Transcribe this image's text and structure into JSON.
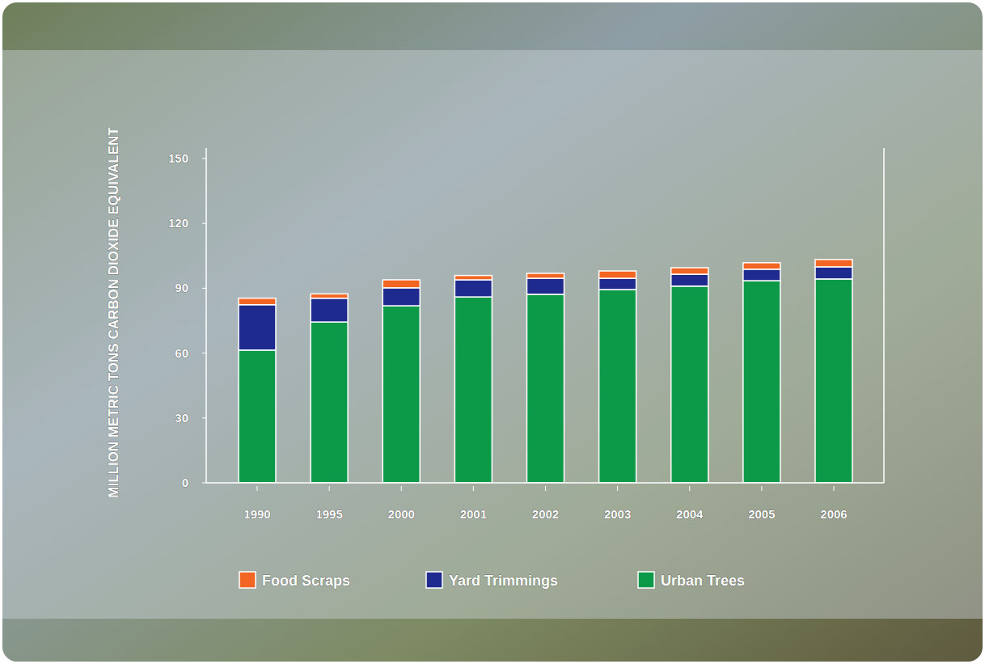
{
  "chart_data": {
    "type": "bar",
    "stacked": true,
    "y_label": "MILLION METRIC TONS CARBON DIOXIDE EQUIVALENT",
    "categories": [
      "1990",
      "1995",
      "2000",
      "2001",
      "2002",
      "2003",
      "2004",
      "2005",
      "2006"
    ],
    "series": [
      {
        "name": "Food Scraps",
        "color": "#f26522",
        "values": [
          3,
          2,
          3.7,
          2,
          2.3,
          3.4,
          3,
          3,
          3.4
        ]
      },
      {
        "name": "Yard Trimmings",
        "color": "#1f2a8e",
        "values": [
          21,
          11,
          8.3,
          7.9,
          7.4,
          5.2,
          5.5,
          5.3,
          5.6
        ]
      },
      {
        "name": "Urban Trees",
        "color": "#0c9a48",
        "values": [
          61.4,
          74.4,
          81.9,
          86,
          87.2,
          89.4,
          91,
          93.5,
          94.3
        ]
      }
    ],
    "ylim": [
      0,
      150
    ],
    "yticks": [
      0,
      30,
      60,
      90,
      120,
      150
    ],
    "legend": "bottom",
    "grid": false
  }
}
